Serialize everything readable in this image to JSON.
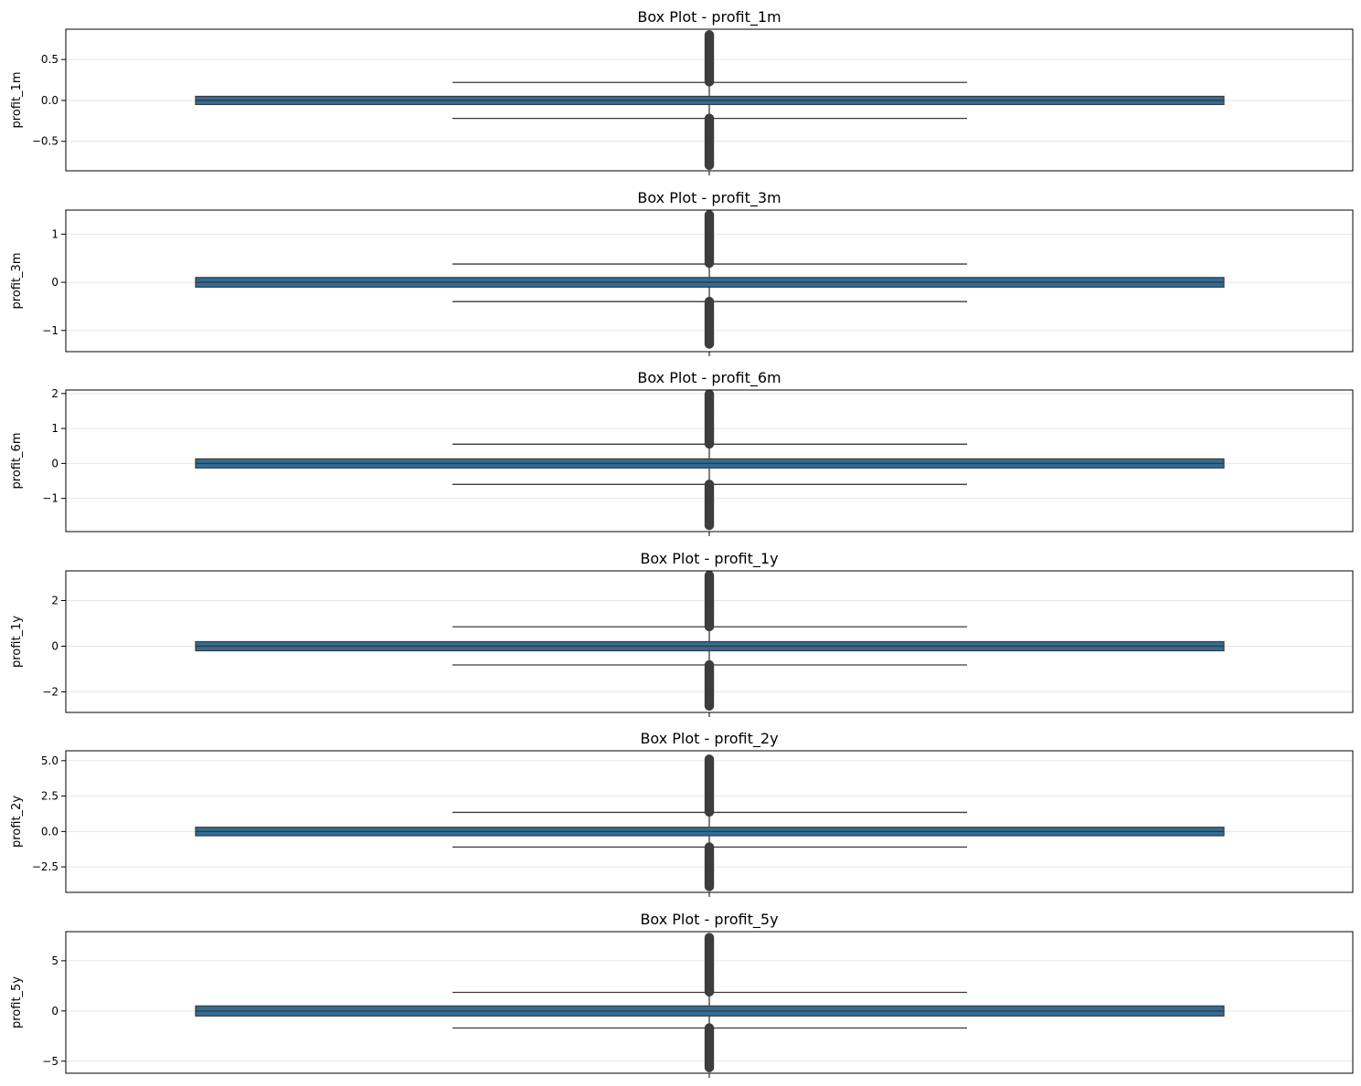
{
  "chart_data": [
    {
      "type": "box",
      "title": "Box Plot - profit_1m",
      "ylabel": "profit_1m",
      "ylim": [
        -0.86,
        0.87
      ],
      "yticks": [
        {
          "value": 0.5,
          "label": "0.5"
        },
        {
          "value": 0.0,
          "label": "0.0"
        },
        {
          "value": -0.5,
          "label": "−0.5"
        }
      ],
      "grid": true,
      "box": {
        "q1": -0.05,
        "median": 0.0,
        "q3": 0.05,
        "whisker_low": -0.22,
        "whisker_high": 0.22
      },
      "outliers": {
        "low": [
          -0.8,
          -0.22
        ],
        "high": [
          0.22,
          0.8
        ]
      }
    },
    {
      "type": "box",
      "title": "Box Plot - profit_3m",
      "ylabel": "profit_3m",
      "ylim": [
        -1.44,
        1.5
      ],
      "yticks": [
        {
          "value": 1,
          "label": "1"
        },
        {
          "value": 0,
          "label": "0"
        },
        {
          "value": -1,
          "label": "−1"
        }
      ],
      "grid": true,
      "box": {
        "q1": -0.1,
        "median": 0.0,
        "q3": 0.1,
        "whisker_low": -0.4,
        "whisker_high": 0.38
      },
      "outliers": {
        "low": [
          -1.3,
          -0.4
        ],
        "high": [
          0.38,
          1.4
        ]
      }
    },
    {
      "type": "box",
      "title": "Box Plot - profit_6m",
      "ylabel": "profit_6m",
      "ylim": [
        -1.95,
        2.1
      ],
      "yticks": [
        {
          "value": 2,
          "label": "2"
        },
        {
          "value": 1,
          "label": "1"
        },
        {
          "value": 0,
          "label": "0"
        },
        {
          "value": -1,
          "label": "−1"
        }
      ],
      "grid": true,
      "box": {
        "q1": -0.13,
        "median": 0.0,
        "q3": 0.13,
        "whisker_low": -0.6,
        "whisker_high": 0.55
      },
      "outliers": {
        "low": [
          -1.8,
          -0.6
        ],
        "high": [
          0.55,
          1.98
        ]
      }
    },
    {
      "type": "box",
      "title": "Box Plot - profit_1y",
      "ylabel": "profit_1y",
      "ylim": [
        -2.9,
        3.3
      ],
      "yticks": [
        {
          "value": 2,
          "label": "2"
        },
        {
          "value": 0,
          "label": "0"
        },
        {
          "value": -2,
          "label": "−2"
        }
      ],
      "grid": true,
      "box": {
        "q1": -0.2,
        "median": 0.0,
        "q3": 0.2,
        "whisker_low": -0.82,
        "whisker_high": 0.85
      },
      "outliers": {
        "low": [
          -2.65,
          -0.82
        ],
        "high": [
          0.85,
          3.1
        ]
      }
    },
    {
      "type": "box",
      "title": "Box Plot - profit_2y",
      "ylabel": "profit_2y",
      "ylim": [
        -4.3,
        5.7
      ],
      "yticks": [
        {
          "value": 5.0,
          "label": "5.0"
        },
        {
          "value": 2.5,
          "label": "2.5"
        },
        {
          "value": 0.0,
          "label": "0.0"
        },
        {
          "value": -2.5,
          "label": "−2.5"
        }
      ],
      "grid": true,
      "box": {
        "q1": -0.3,
        "median": 0.0,
        "q3": 0.3,
        "whisker_low": -1.1,
        "whisker_high": 1.35
      },
      "outliers": {
        "low": [
          -3.9,
          -1.1
        ],
        "high": [
          1.35,
          5.1
        ]
      }
    },
    {
      "type": "box",
      "title": "Box Plot - profit_5y",
      "ylabel": "profit_5y",
      "ylim": [
        -6.2,
        7.9
      ],
      "yticks": [
        {
          "value": 5,
          "label": "5"
        },
        {
          "value": 0,
          "label": "0"
        },
        {
          "value": -5,
          "label": "−5"
        }
      ],
      "grid": true,
      "box": {
        "q1": -0.5,
        "median": 0.0,
        "q3": 0.5,
        "whisker_low": -1.7,
        "whisker_high": 1.85
      },
      "outliers": {
        "low": [
          -5.7,
          -1.7
        ],
        "high": [
          1.85,
          7.3
        ]
      }
    }
  ],
  "colors": {
    "box_fill": "#2f6d99",
    "box_edge": "#3a3a3a",
    "grid": "#e6e6e6",
    "outlier": "#3d3d3d"
  }
}
